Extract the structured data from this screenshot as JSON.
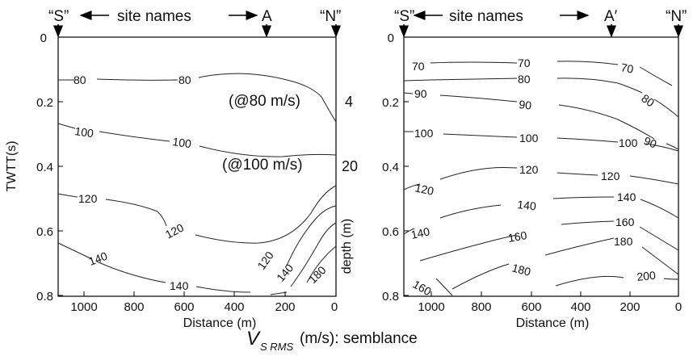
{
  "caption": {
    "main": "V",
    "sub": "S RMS",
    "rest": "(m/s): semblance"
  },
  "left_panel": {
    "header": {
      "s": "“S”",
      "site_names": "site names",
      "marker": "A",
      "n": "“N”"
    },
    "y_axis_label": "TWTT(s)",
    "y_ticks": [
      "0",
      "0.2",
      "0.4",
      "0.6",
      "0.8"
    ],
    "x_label": "Distance (m)",
    "x_ticks": [
      "1000",
      "800",
      "600",
      "400",
      "200",
      "0"
    ],
    "right_axis_label": "depth (m)",
    "depth_ticks": [
      "4",
      "20"
    ],
    "annotations": [
      "(@80 m/s)",
      "(@100 m/s)"
    ],
    "contour_labels": [
      "80",
      "80",
      "100",
      "100",
      "120",
      "120",
      "120",
      "140",
      "140",
      "140",
      "180"
    ]
  },
  "right_panel": {
    "header": {
      "s": "“S”",
      "site_names": "site names",
      "marker": "A′",
      "n": "“N”"
    },
    "y_ticks": [
      "0",
      "0.2",
      "0.4",
      "0.6",
      "0.8"
    ],
    "x_label": "Distance (m)",
    "x_ticks": [
      "1000",
      "800",
      "600",
      "400",
      "200",
      "0"
    ],
    "contour_labels": [
      "70",
      "70",
      "70",
      "80",
      "80",
      "90",
      "90",
      "90",
      "100",
      "100",
      "100",
      "120",
      "120",
      "120",
      "140",
      "140",
      "140",
      "160",
      "160",
      "160",
      "180",
      "180",
      "200"
    ]
  }
}
